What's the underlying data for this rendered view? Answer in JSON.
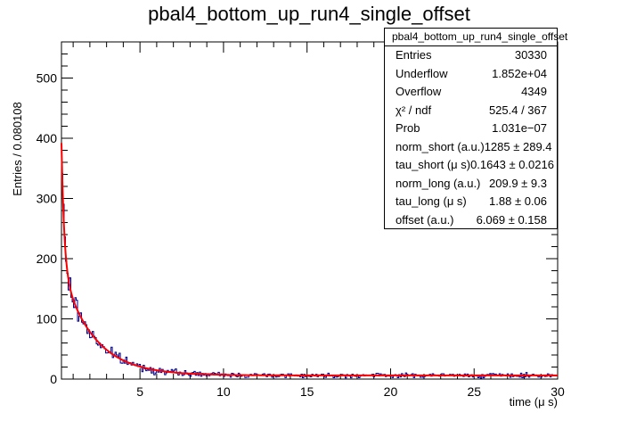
{
  "chart_data": {
    "type": "histogram",
    "title": "pbal4_bottom_up_run4_single_offset",
    "xlabel": "time (μ s)",
    "ylabel": "Entries / 0.080108",
    "xlim": [
      0.3,
      30
    ],
    "ylim": [
      0,
      560
    ],
    "x_ticks": [
      5,
      10,
      15,
      20,
      25,
      30
    ],
    "y_ticks": [
      0,
      100,
      200,
      300,
      400,
      500
    ],
    "bin_width": 0.080108,
    "fit_function": "offset + norm_short*exp(-t/tau_short) + norm_long*exp(-t/tau_long)",
    "fit_params": {
      "norm_short": 1285,
      "tau_short": 0.1643,
      "norm_long": 209.9,
      "tau_long": 1.88,
      "offset": 6.069
    },
    "series": [
      {
        "name": "histogram",
        "color": "#00008b"
      },
      {
        "name": "fit",
        "color": "#ff0000"
      }
    ],
    "grid": false,
    "stats": {
      "title": "pbal4_bottom_up_run4_single_offset",
      "rows": [
        {
          "label": "Entries",
          "value": "30330"
        },
        {
          "label": "Underflow",
          "value": "1.852e+04"
        },
        {
          "label": "Overflow",
          "value": "4349"
        },
        {
          "label": "χ² / ndf",
          "value": "525.4 / 367"
        },
        {
          "label": "Prob",
          "value": "1.031e−07"
        },
        {
          "label": "norm_short (a.u.)",
          "value": "1285 ± 289.4"
        },
        {
          "label": "tau_short (μ s)",
          "value": "0.1643 ± 0.0216"
        },
        {
          "label": "norm_long (a.u.)",
          "value": "209.9 ± 9.3"
        },
        {
          "label": "tau_long (μ s)",
          "value": "1.88 ± 0.06"
        },
        {
          "label": "offset (a.u.)",
          "value": "6.069 ± 0.158"
        }
      ]
    }
  }
}
